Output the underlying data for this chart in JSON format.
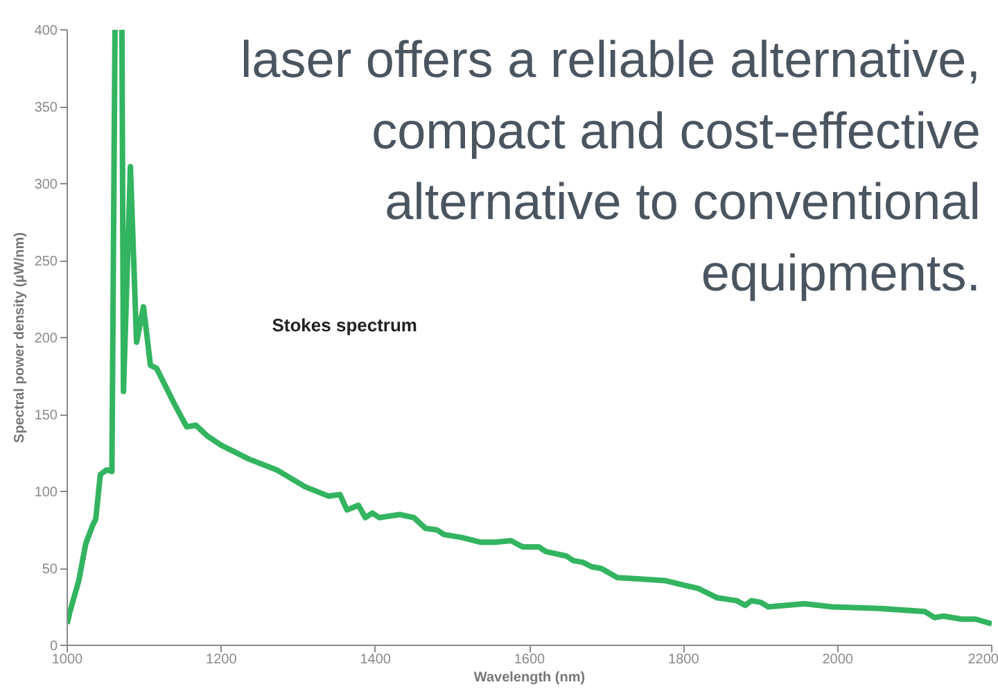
{
  "chart_data": {
    "type": "line",
    "title": "Stokes spectrum",
    "xlabel": "Wavelength (nm)",
    "ylabel": "Spectral power density (µW/nm)",
    "annotations": [
      {
        "text": "laser offers a reliable alternative,\ncompact and cost-effective\nalternative to conventional\nequipments."
      }
    ],
    "xlim": [
      1000,
      2200
    ],
    "ylim": [
      0,
      400
    ],
    "xticks": [
      1000,
      1200,
      1400,
      1600,
      1800,
      2000,
      2200
    ],
    "yticks": [
      0,
      50,
      100,
      150,
      200,
      250,
      300,
      350,
      400
    ],
    "grid": false,
    "marker": "none",
    "line_style": "solid",
    "series": [
      {
        "color": "#33b460",
        "x": [
          1000,
          1003,
          1015,
          1024,
          1033,
          1037,
          1043,
          1051,
          1058,
          1062,
          1065,
          1071,
          1073,
          1082,
          1090,
          1099,
          1108,
          1116,
          1140,
          1155,
          1167,
          1182,
          1200,
          1236,
          1272,
          1309,
          1339,
          1354,
          1363,
          1378,
          1387,
          1396,
          1405,
          1432,
          1450,
          1465,
          1480,
          1489,
          1513,
          1537,
          1555,
          1576,
          1591,
          1612,
          1621,
          1648,
          1657,
          1669,
          1681,
          1693,
          1714,
          1747,
          1777,
          1801,
          1819,
          1843,
          1869,
          1880,
          1888,
          1900,
          1910,
          1957,
          1993,
          2053,
          2113,
          2126,
          2137,
          2161,
          2179,
          2200
        ],
        "values": [
          14,
          21,
          42,
          66,
          78,
          82,
          111,
          114,
          113,
          400,
          null,
          400,
          165,
          311,
          197,
          220,
          182,
          180,
          156,
          142,
          143,
          136,
          130,
          121,
          114,
          103,
          97,
          98,
          88,
          91,
          83,
          86,
          83,
          85,
          83,
          76,
          75,
          72,
          70,
          67,
          67,
          68,
          64,
          64,
          61,
          58,
          55,
          54,
          51,
          50,
          44,
          43,
          42,
          39,
          37,
          31,
          29,
          26,
          29,
          28,
          25,
          27,
          25,
          24,
          22,
          18,
          19,
          17,
          17,
          14
        ]
      }
    ]
  }
}
